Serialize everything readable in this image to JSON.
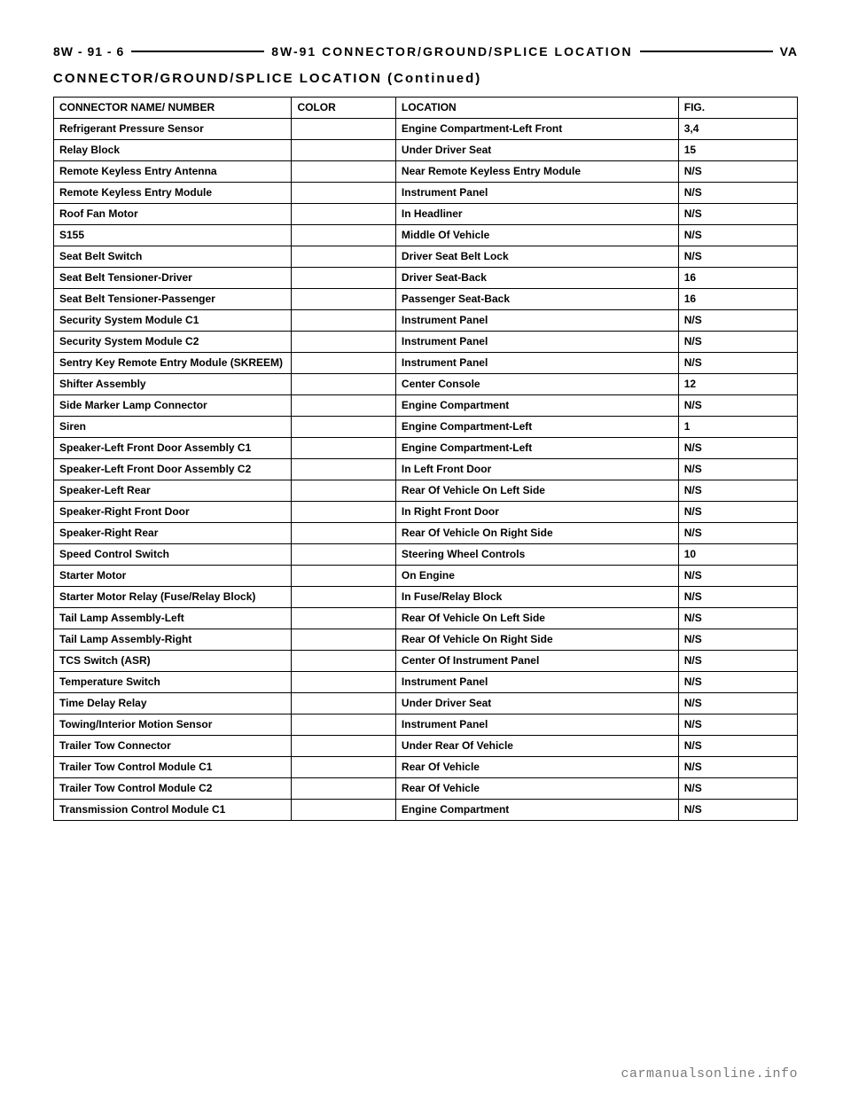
{
  "header": {
    "left": "8W - 91 - 6",
    "center": "8W-91  CONNECTOR/GROUND/SPLICE  LOCATION",
    "right": "VA"
  },
  "subhead": "CONNECTOR/GROUND/SPLICE LOCATION (Continued)",
  "columns": {
    "name": "CONNECTOR NAME/ NUMBER",
    "color": "COLOR",
    "location": "LOCATION",
    "fig": "FIG."
  },
  "rows": [
    {
      "name": "Refrigerant Pressure Sensor",
      "color": "",
      "location": "Engine Compartment-Left Front",
      "fig": "3,4"
    },
    {
      "name": "Relay Block",
      "color": "",
      "location": "Under Driver Seat",
      "fig": "15"
    },
    {
      "name": "Remote Keyless Entry Antenna",
      "color": "",
      "location": "Near Remote Keyless Entry Module",
      "fig": "N/S"
    },
    {
      "name": "Remote Keyless Entry Module",
      "color": "",
      "location": "Instrument Panel",
      "fig": "N/S"
    },
    {
      "name": "Roof Fan Motor",
      "color": "",
      "location": "In Headliner",
      "fig": "N/S"
    },
    {
      "name": "S155",
      "color": "",
      "location": "Middle Of Vehicle",
      "fig": "N/S"
    },
    {
      "name": "Seat Belt Switch",
      "color": "",
      "location": "Driver Seat Belt Lock",
      "fig": "N/S"
    },
    {
      "name": "Seat Belt Tensioner-Driver",
      "color": "",
      "location": "Driver Seat-Back",
      "fig": "16"
    },
    {
      "name": "Seat Belt Tensioner-Passenger",
      "color": "",
      "location": "Passenger Seat-Back",
      "fig": "16"
    },
    {
      "name": "Security System Module C1",
      "color": "",
      "location": "Instrument Panel",
      "fig": "N/S"
    },
    {
      "name": "Security System Module C2",
      "color": "",
      "location": "Instrument Panel",
      "fig": "N/S"
    },
    {
      "name": "Sentry Key Remote Entry Module (SKREEM)",
      "color": "",
      "location": "Instrument Panel",
      "fig": "N/S"
    },
    {
      "name": "Shifter Assembly",
      "color": "",
      "location": "Center Console",
      "fig": "12"
    },
    {
      "name": "Side Marker Lamp Connector",
      "color": "",
      "location": "Engine Compartment",
      "fig": "N/S"
    },
    {
      "name": "Siren",
      "color": "",
      "location": "Engine Compartment-Left",
      "fig": "1"
    },
    {
      "name": "Speaker-Left Front Door Assembly C1",
      "color": "",
      "location": "Engine Compartment-Left",
      "fig": "N/S"
    },
    {
      "name": "Speaker-Left Front Door Assembly C2",
      "color": "",
      "location": "In Left Front Door",
      "fig": "N/S"
    },
    {
      "name": "Speaker-Left Rear",
      "color": "",
      "location": "Rear Of Vehicle On Left Side",
      "fig": "N/S"
    },
    {
      "name": "Speaker-Right Front Door",
      "color": "",
      "location": "In Right Front Door",
      "fig": "N/S"
    },
    {
      "name": "Speaker-Right Rear",
      "color": "",
      "location": "Rear Of Vehicle On Right Side",
      "fig": "N/S"
    },
    {
      "name": "Speed Control Switch",
      "color": "",
      "location": "Steering Wheel Controls",
      "fig": "10"
    },
    {
      "name": "Starter Motor",
      "color": "",
      "location": "On Engine",
      "fig": "N/S"
    },
    {
      "name": "Starter Motor Relay (Fuse/Relay Block)",
      "color": "",
      "location": "In Fuse/Relay Block",
      "fig": "N/S"
    },
    {
      "name": "Tail Lamp Assembly-Left",
      "color": "",
      "location": "Rear Of Vehicle On Left Side",
      "fig": "N/S"
    },
    {
      "name": "Tail Lamp Assembly-Right",
      "color": "",
      "location": "Rear Of Vehicle On Right Side",
      "fig": "N/S"
    },
    {
      "name": "TCS Switch (ASR)",
      "color": "",
      "location": "Center Of Instrument Panel",
      "fig": "N/S"
    },
    {
      "name": "Temperature Switch",
      "color": "",
      "location": "Instrument Panel",
      "fig": "N/S"
    },
    {
      "name": "Time Delay Relay",
      "color": "",
      "location": "Under Driver Seat",
      "fig": "N/S"
    },
    {
      "name": "Towing/Interior Motion Sensor",
      "color": "",
      "location": "Instrument Panel",
      "fig": "N/S"
    },
    {
      "name": "Trailer Tow Connector",
      "color": "",
      "location": "Under Rear Of Vehicle",
      "fig": "N/S"
    },
    {
      "name": "Trailer Tow Control Module C1",
      "color": "",
      "location": "Rear Of Vehicle",
      "fig": "N/S"
    },
    {
      "name": "Trailer Tow Control Module C2",
      "color": "",
      "location": "Rear Of Vehicle",
      "fig": "N/S"
    },
    {
      "name": "Transmission Control Module C1",
      "color": "",
      "location": "Engine Compartment",
      "fig": "N/S"
    }
  ],
  "footer": "carmanualsonline.info"
}
